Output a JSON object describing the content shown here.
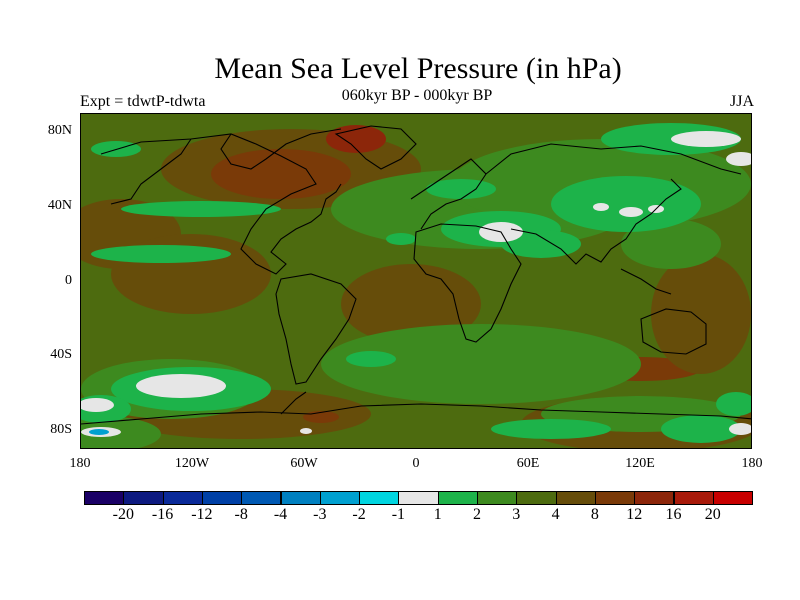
{
  "title": "Mean Sea Level Pressure (in hPa)",
  "subtitle": "060kyr BP - 000kyr BP",
  "experiment": "Expt = tdwtP-tdwta",
  "season": "JJA",
  "axes": {
    "lat_labels": [
      "80N",
      "40N",
      "0",
      "40S",
      "80S"
    ],
    "lon_labels": [
      "180",
      "120W",
      "60W",
      "0",
      "60E",
      "120E",
      "180"
    ]
  },
  "colorbar": {
    "colors": [
      "#1a0066",
      "#0d1a80",
      "#0a2a99",
      "#0040a6",
      "#0059b3",
      "#0080c0",
      "#00a0d0",
      "#00d5e0",
      "#e6e6e6",
      "#1db34a",
      "#3d8a1f",
      "#4d6b0f",
      "#664d0a",
      "#7a3a08",
      "#8c260a",
      "#a81a0a",
      "#c80000"
    ],
    "labels": [
      "-20",
      "-16",
      "-12",
      "-8",
      "-4",
      "-3",
      "-2",
      "-1",
      "1",
      "2",
      "3",
      "4",
      "8",
      "12",
      "16",
      "20"
    ]
  },
  "map_colors": {
    "base": "#4d6b0f",
    "positive_mid": "#664d0a",
    "positive_high": "#7a3a08",
    "negative_low": "#3d8a1f",
    "negative_mid": "#1db34a",
    "neutral": "#e6e6e6",
    "deep_negative": "#00a0d0"
  }
}
